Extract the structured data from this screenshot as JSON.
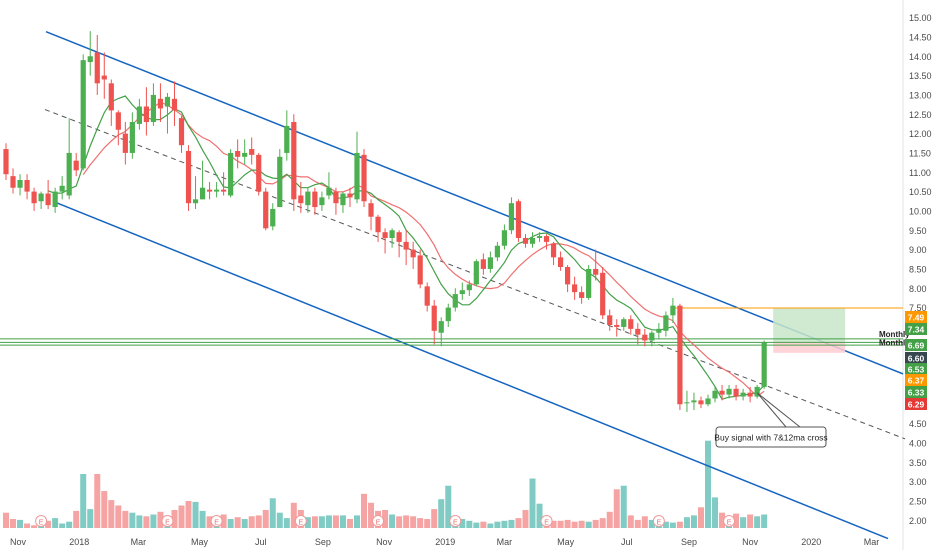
{
  "chart_data": {
    "type": "candlestick",
    "title": "",
    "xlabel": "",
    "ylabel": "",
    "ylim": [
      1.8,
      15.3
    ],
    "y_ticks": [
      "2.00",
      "2.50",
      "3.00",
      "3.50",
      "4.00",
      "4.50",
      "5.00",
      "5.50",
      "6.00",
      "6.50",
      "7.00",
      "7.50",
      "8.00",
      "8.50",
      "9.00",
      "9.50",
      "10.00",
      "10.50",
      "11.00",
      "11.50",
      "12.00",
      "12.50",
      "13.00",
      "13.50",
      "14.00",
      "14.50",
      "15.00"
    ],
    "x_ticks": [
      "Nov",
      "2018",
      "Mar",
      "May",
      "Jul",
      "Sep",
      "Nov",
      "2019",
      "Mar",
      "May",
      "Jul",
      "Sep",
      "Nov",
      "2020",
      "Mar"
    ],
    "colors": {
      "up": "#26a69a",
      "up_body": "#4caf50",
      "down": "#ef5350",
      "volume_up": "#80cbc4",
      "volume_down": "#f5a3a3",
      "ma7": "#43a047",
      "ma12": "#ef7070",
      "channel": "#1565c0",
      "midline": "#555555",
      "horizontal": "#43a047",
      "target_zone": "#c8e6c9",
      "stop_zone": "#ffcdd2",
      "orange_line": "#ff9800"
    },
    "candles": [
      {
        "date": "2017-10-20",
        "o": 11.6,
        "h": 11.75,
        "c": 10.95,
        "l": 10.8
      },
      {
        "date": "2017-10-27",
        "o": 10.9,
        "h": 11.1,
        "c": 10.6,
        "l": 10.45
      },
      {
        "date": "2017-11-03",
        "o": 10.6,
        "h": 10.95,
        "c": 10.8,
        "l": 10.4
      },
      {
        "date": "2017-11-10",
        "o": 10.8,
        "h": 10.95,
        "c": 10.5,
        "l": 10.3
      },
      {
        "date": "2017-11-17",
        "o": 10.5,
        "h": 10.6,
        "c": 10.2,
        "l": 10.0
      },
      {
        "date": "2017-11-24",
        "o": 10.25,
        "h": 10.5,
        "c": 10.45,
        "l": 10.05
      },
      {
        "date": "2017-12-01",
        "o": 10.45,
        "h": 10.8,
        "c": 10.15,
        "l": 10.05
      },
      {
        "date": "2017-12-08",
        "o": 10.1,
        "h": 10.6,
        "c": 10.5,
        "l": 9.95
      },
      {
        "date": "2017-12-15",
        "o": 10.5,
        "h": 10.9,
        "c": 10.65,
        "l": 10.3
      },
      {
        "date": "2017-12-22",
        "o": 10.4,
        "h": 12.4,
        "c": 11.5,
        "l": 10.3
      },
      {
        "date": "2017-12-29",
        "o": 11.3,
        "h": 11.5,
        "c": 11.05,
        "l": 10.9
      },
      {
        "date": "2018-01-05",
        "o": 11.1,
        "h": 14.05,
        "c": 13.9,
        "l": 11.05
      },
      {
        "date": "2018-01-12",
        "o": 13.85,
        "h": 14.65,
        "c": 14.0,
        "l": 13.5
      },
      {
        "date": "2018-01-19",
        "o": 14.1,
        "h": 14.55,
        "c": 13.3,
        "l": 13.0
      },
      {
        "date": "2018-01-26",
        "o": 13.5,
        "h": 14.1,
        "c": 13.4,
        "l": 12.9
      },
      {
        "date": "2018-02-02",
        "o": 13.3,
        "h": 13.4,
        "c": 12.6,
        "l": 12.2
      },
      {
        "date": "2018-02-09",
        "o": 12.55,
        "h": 12.6,
        "c": 12.1,
        "l": 11.7
      },
      {
        "date": "2018-02-16",
        "o": 12.0,
        "h": 12.3,
        "c": 11.5,
        "l": 11.2
      },
      {
        "date": "2018-02-23",
        "o": 11.5,
        "h": 12.55,
        "c": 12.3,
        "l": 11.35
      },
      {
        "date": "2018-03-02",
        "o": 12.25,
        "h": 12.9,
        "c": 12.7,
        "l": 12.1
      },
      {
        "date": "2018-03-09",
        "o": 12.7,
        "h": 13.2,
        "c": 12.3,
        "l": 11.95
      },
      {
        "date": "2018-03-16",
        "o": 12.3,
        "h": 13.3,
        "c": 13.0,
        "l": 12.2
      },
      {
        "date": "2018-03-23",
        "o": 12.9,
        "h": 13.3,
        "c": 12.65,
        "l": 12.3
      },
      {
        "date": "2018-03-30",
        "o": 12.7,
        "h": 13.05,
        "c": 12.95,
        "l": 12.0
      },
      {
        "date": "2018-04-06",
        "o": 12.9,
        "h": 13.35,
        "c": 12.6,
        "l": 12.2
      },
      {
        "date": "2018-04-13",
        "o": 12.4,
        "h": 12.45,
        "c": 11.7,
        "l": 11.5
      },
      {
        "date": "2018-04-20",
        "o": 11.55,
        "h": 11.7,
        "c": 10.2,
        "l": 10.0
      },
      {
        "date": "2018-04-27",
        "o": 10.2,
        "h": 10.9,
        "c": 10.3,
        "l": 10.05
      },
      {
        "date": "2018-05-04",
        "o": 10.3,
        "h": 11.3,
        "c": 10.6,
        "l": 10.3
      },
      {
        "date": "2018-05-11",
        "o": 10.55,
        "h": 10.75,
        "c": 10.5,
        "l": 10.3
      },
      {
        "date": "2018-05-18",
        "o": 10.5,
        "h": 10.75,
        "c": 10.55,
        "l": 10.35
      },
      {
        "date": "2018-05-25",
        "o": 10.55,
        "h": 11.0,
        "c": 10.5,
        "l": 10.4
      },
      {
        "date": "2018-06-01",
        "o": 10.4,
        "h": 11.6,
        "c": 11.5,
        "l": 10.35
      },
      {
        "date": "2018-06-08",
        "o": 11.55,
        "h": 11.85,
        "c": 11.4,
        "l": 11.1
      },
      {
        "date": "2018-06-15",
        "o": 11.4,
        "h": 11.85,
        "c": 11.5,
        "l": 11.2
      },
      {
        "date": "2018-06-22",
        "o": 11.6,
        "h": 11.9,
        "c": 11.45,
        "l": 11.2
      },
      {
        "date": "2018-06-29",
        "o": 11.45,
        "h": 11.5,
        "c": 10.5,
        "l": 10.4
      },
      {
        "date": "2018-07-06",
        "o": 10.5,
        "h": 10.6,
        "c": 9.55,
        "l": 9.5
      },
      {
        "date": "2018-07-13",
        "o": 9.6,
        "h": 10.2,
        "c": 10.05,
        "l": 9.5
      },
      {
        "date": "2018-07-20",
        "o": 10.1,
        "h": 11.6,
        "c": 11.4,
        "l": 10.1
      },
      {
        "date": "2018-07-27",
        "o": 11.5,
        "h": 12.6,
        "c": 12.2,
        "l": 11.3
      },
      {
        "date": "2018-08-03",
        "o": 12.3,
        "h": 12.5,
        "c": 10.3,
        "l": 10.0
      },
      {
        "date": "2018-08-10",
        "o": 10.4,
        "h": 10.75,
        "c": 10.2,
        "l": 9.95
      },
      {
        "date": "2018-08-17",
        "o": 10.15,
        "h": 10.6,
        "c": 10.5,
        "l": 9.95
      },
      {
        "date": "2018-08-24",
        "o": 10.5,
        "h": 10.6,
        "c": 10.1,
        "l": 9.9
      },
      {
        "date": "2018-08-31",
        "o": 10.15,
        "h": 10.5,
        "c": 10.35,
        "l": 10.0
      },
      {
        "date": "2018-09-07",
        "o": 10.4,
        "h": 11.0,
        "c": 10.6,
        "l": 10.3
      },
      {
        "date": "2018-09-14",
        "o": 10.5,
        "h": 10.6,
        "c": 10.2,
        "l": 9.9
      },
      {
        "date": "2018-09-21",
        "o": 10.15,
        "h": 10.5,
        "c": 10.45,
        "l": 9.95
      },
      {
        "date": "2018-09-28",
        "o": 10.45,
        "h": 10.6,
        "c": 10.35,
        "l": 10.1
      },
      {
        "date": "2018-10-05",
        "o": 10.3,
        "h": 12.05,
        "c": 11.5,
        "l": 10.2
      },
      {
        "date": "2018-10-12",
        "o": 11.45,
        "h": 11.6,
        "c": 10.25,
        "l": 10.1
      },
      {
        "date": "2018-10-19",
        "o": 10.2,
        "h": 10.3,
        "c": 9.85,
        "l": 9.5
      },
      {
        "date": "2018-10-26",
        "o": 9.85,
        "h": 9.9,
        "c": 9.45,
        "l": 9.2
      },
      {
        "date": "2018-11-02",
        "o": 9.45,
        "h": 9.55,
        "c": 9.3,
        "l": 8.9
      },
      {
        "date": "2018-11-09",
        "o": 9.3,
        "h": 9.55,
        "c": 9.5,
        "l": 9.05
      },
      {
        "date": "2018-11-16",
        "o": 9.45,
        "h": 9.5,
        "c": 9.2,
        "l": 8.8
      },
      {
        "date": "2018-11-23",
        "o": 9.2,
        "h": 9.5,
        "c": 9.0,
        "l": 8.6
      },
      {
        "date": "2018-11-30",
        "o": 9.0,
        "h": 9.2,
        "c": 8.8,
        "l": 8.5
      },
      {
        "date": "2018-12-07",
        "o": 8.85,
        "h": 9.0,
        "c": 8.1,
        "l": 8.0
      },
      {
        "date": "2018-12-14",
        "o": 8.05,
        "h": 8.15,
        "c": 7.55,
        "l": 7.4
      },
      {
        "date": "2018-12-21",
        "o": 7.55,
        "h": 7.7,
        "c": 6.9,
        "l": 6.55
      },
      {
        "date": "2018-12-28",
        "o": 6.85,
        "h": 7.25,
        "c": 7.15,
        "l": 6.5
      },
      {
        "date": "2019-01-04",
        "o": 7.15,
        "h": 7.6,
        "c": 7.5,
        "l": 7.0
      },
      {
        "date": "2019-01-11",
        "o": 7.5,
        "h": 8.0,
        "c": 7.85,
        "l": 7.4
      },
      {
        "date": "2019-01-18",
        "o": 7.85,
        "h": 8.15,
        "c": 7.95,
        "l": 7.7
      },
      {
        "date": "2019-01-25",
        "o": 7.95,
        "h": 8.2,
        "c": 8.1,
        "l": 7.8
      },
      {
        "date": "2019-02-01",
        "o": 8.1,
        "h": 8.75,
        "c": 8.7,
        "l": 8.05
      },
      {
        "date": "2019-02-08",
        "o": 8.75,
        "h": 8.9,
        "c": 8.5,
        "l": 8.35
      },
      {
        "date": "2019-02-15",
        "o": 8.5,
        "h": 8.95,
        "c": 8.8,
        "l": 8.4
      },
      {
        "date": "2019-02-22",
        "o": 8.8,
        "h": 9.2,
        "c": 9.1,
        "l": 8.7
      },
      {
        "date": "2019-03-01",
        "o": 9.1,
        "h": 9.65,
        "c": 9.5,
        "l": 9.0
      },
      {
        "date": "2019-03-08",
        "o": 9.5,
        "h": 10.35,
        "c": 10.2,
        "l": 9.4
      },
      {
        "date": "2019-03-15",
        "o": 10.25,
        "h": 10.3,
        "c": 9.3,
        "l": 9.2
      },
      {
        "date": "2019-03-22",
        "o": 9.3,
        "h": 9.4,
        "c": 9.15,
        "l": 9.05
      },
      {
        "date": "2019-03-29",
        "o": 9.15,
        "h": 9.45,
        "c": 9.3,
        "l": 9.05
      },
      {
        "date": "2019-04-05",
        "o": 9.3,
        "h": 9.45,
        "c": 9.35,
        "l": 9.2
      },
      {
        "date": "2019-04-12",
        "o": 9.35,
        "h": 9.4,
        "c": 9.2,
        "l": 9.0
      },
      {
        "date": "2019-04-19",
        "o": 9.15,
        "h": 9.2,
        "c": 8.8,
        "l": 8.6
      },
      {
        "date": "2019-04-26",
        "o": 8.8,
        "h": 8.95,
        "c": 8.55,
        "l": 8.45
      },
      {
        "date": "2019-05-03",
        "o": 8.55,
        "h": 8.6,
        "c": 8.1,
        "l": 7.9
      },
      {
        "date": "2019-05-10",
        "o": 8.1,
        "h": 8.3,
        "c": 7.9,
        "l": 7.7
      },
      {
        "date": "2019-05-17",
        "o": 7.9,
        "h": 8.05,
        "c": 7.75,
        "l": 7.6
      },
      {
        "date": "2019-05-24",
        "o": 7.75,
        "h": 8.6,
        "c": 8.5,
        "l": 7.7
      },
      {
        "date": "2019-05-31",
        "o": 8.5,
        "h": 9.0,
        "c": 8.35,
        "l": 8.2
      },
      {
        "date": "2019-06-07",
        "o": 8.4,
        "h": 8.55,
        "c": 7.3,
        "l": 7.2
      },
      {
        "date": "2019-06-14",
        "o": 7.3,
        "h": 7.45,
        "c": 7.05,
        "l": 6.9
      },
      {
        "date": "2019-06-21",
        "o": 7.05,
        "h": 7.2,
        "c": 7.0,
        "l": 6.75
      },
      {
        "date": "2019-06-28",
        "o": 7.0,
        "h": 7.25,
        "c": 7.2,
        "l": 6.9
      },
      {
        "date": "2019-07-05",
        "o": 7.2,
        "h": 7.3,
        "c": 6.95,
        "l": 6.8
      },
      {
        "date": "2019-07-12",
        "o": 6.95,
        "h": 7.1,
        "c": 6.8,
        "l": 6.55
      },
      {
        "date": "2019-07-19",
        "o": 6.8,
        "h": 6.95,
        "c": 6.65,
        "l": 6.5
      },
      {
        "date": "2019-07-26",
        "o": 6.65,
        "h": 6.9,
        "c": 6.85,
        "l": 6.5
      },
      {
        "date": "2019-08-02",
        "o": 6.85,
        "h": 7.1,
        "c": 6.95,
        "l": 6.7
      },
      {
        "date": "2019-08-09",
        "o": 6.9,
        "h": 7.4,
        "c": 7.3,
        "l": 6.75
      },
      {
        "date": "2019-08-16",
        "o": 7.3,
        "h": 7.75,
        "c": 7.55,
        "l": 7.1
      },
      {
        "date": "2019-08-23",
        "o": 7.55,
        "h": 7.6,
        "c": 5.0,
        "l": 4.85
      },
      {
        "date": "2019-08-30",
        "o": 5.05,
        "h": 5.35,
        "c": 5.05,
        "l": 4.8
      },
      {
        "date": "2019-09-06",
        "o": 5.05,
        "h": 5.3,
        "c": 5.1,
        "l": 4.85
      },
      {
        "date": "2019-09-13",
        "o": 5.1,
        "h": 5.2,
        "c": 5.0,
        "l": 4.9
      },
      {
        "date": "2019-09-20",
        "o": 5.0,
        "h": 5.25,
        "c": 5.15,
        "l": 4.95
      },
      {
        "date": "2019-09-27",
        "o": 5.15,
        "h": 5.45,
        "c": 5.35,
        "l": 5.05
      },
      {
        "date": "2019-10-04",
        "o": 5.35,
        "h": 5.5,
        "c": 5.25,
        "l": 5.1
      },
      {
        "date": "2019-10-11",
        "o": 5.25,
        "h": 5.5,
        "c": 5.4,
        "l": 5.15
      },
      {
        "date": "2019-10-18",
        "o": 5.4,
        "h": 5.5,
        "c": 5.2,
        "l": 5.1
      },
      {
        "date": "2019-10-25",
        "o": 5.2,
        "h": 5.4,
        "c": 5.3,
        "l": 5.1
      },
      {
        "date": "2019-11-01",
        "o": 5.3,
        "h": 5.45,
        "c": 5.2,
        "l": 5.05
      },
      {
        "date": "2019-11-08",
        "o": 5.2,
        "h": 5.5,
        "c": 5.45,
        "l": 5.15
      },
      {
        "date": "2019-11-15",
        "o": 5.45,
        "h": 6.65,
        "c": 6.6,
        "l": 5.4
      }
    ],
    "volume": {
      "ylim": [
        0,
        1
      ],
      "values": [
        0.17,
        0.1,
        0.09,
        0.05,
        0.03,
        0.09,
        0.08,
        0.11,
        0.05,
        0.07,
        0.19,
        0.6,
        0.21,
        0.6,
        0.41,
        0.31,
        0.25,
        0.19,
        0.17,
        0.14,
        0.13,
        0.15,
        0.18,
        0.14,
        0.2,
        0.25,
        0.3,
        0.29,
        0.19,
        0.13,
        0.12,
        0.15,
        0.1,
        0.12,
        0.1,
        0.13,
        0.14,
        0.2,
        0.33,
        0.17,
        0.11,
        0.28,
        0.2,
        0.12,
        0.13,
        0.13,
        0.14,
        0.14,
        0.14,
        0.1,
        0.14,
        0.38,
        0.28,
        0.19,
        0.2,
        0.15,
        0.13,
        0.14,
        0.13,
        0.11,
        0.1,
        0.21,
        0.32,
        0.47,
        0.13,
        0.1,
        0.08,
        0.06,
        0.07,
        0.05,
        0.07,
        0.08,
        0.09,
        0.11,
        0.2,
        0.55,
        0.27,
        0.11,
        0.08,
        0.08,
        0.09,
        0.07,
        0.08,
        0.07,
        0.09,
        0.11,
        0.18,
        0.43,
        0.47,
        0.14,
        0.09,
        0.13,
        0.09,
        0.11,
        0.07,
        0.06,
        0.07,
        0.12,
        0.14,
        0.23,
        0.97,
        0.34,
        0.17,
        0.13,
        0.16,
        0.12,
        0.15,
        0.13,
        0.15,
        0.14,
        0.17,
        0.44
      ]
    },
    "overlays": {
      "channel_upper": [
        {
          "date": "2017-10-20",
          "price": 15.05
        },
        {
          "date": "2019-11-15",
          "price": 7.22
        }
      ],
      "channel_lower": [
        {
          "date": "2017-12-01",
          "price": 10.3
        },
        {
          "date": "2019-11-15",
          "price": 2.82
        }
      ],
      "midline": [
        {
          "date": "2017-11-10",
          "price": 12.8
        },
        {
          "date": "2019-11-15",
          "price": 5.5
        }
      ],
      "horizontal_levels": [
        {
          "price": 6.69
        },
        {
          "price": 6.6
        },
        {
          "price": 6.53
        }
      ],
      "orange_level": {
        "price": 7.49
      },
      "target_zone": {
        "from": 6.6,
        "to": 7.49
      },
      "stop_zone": {
        "from": 6.33,
        "to": 6.6
      }
    },
    "annotations": [
      {
        "text": "Monthly",
        "price": 6.69
      },
      {
        "text": "Monthly",
        "price": 6.6
      },
      {
        "text": "Buy signal with 7&12ma cross",
        "date": "2019-11-08",
        "price": 5.4
      }
    ],
    "price_labels": [
      {
        "text": "7.49",
        "color": "#ff9800"
      },
      {
        "text": "7.34",
        "color": "#43a047"
      },
      {
        "text": "6.69",
        "color": "#43a047"
      },
      {
        "text": "6.60",
        "color": "#37474f"
      },
      {
        "text": "6.53",
        "color": "#43a047"
      },
      {
        "text": "6.37",
        "color": "#ff9800"
      },
      {
        "text": "6.33",
        "color": "#43a047"
      },
      {
        "text": "6.29",
        "color": "#e53935"
      }
    ],
    "earnings_markers": [
      "2017-11-24",
      "2018-03-30",
      "2018-05-18",
      "2018-08-10",
      "2018-10-26",
      "2019-01-11",
      "2019-04-12",
      "2019-08-02",
      "2019-10-11"
    ],
    "earnings_marker_text": "E",
    "grid": false,
    "legend": "none"
  }
}
